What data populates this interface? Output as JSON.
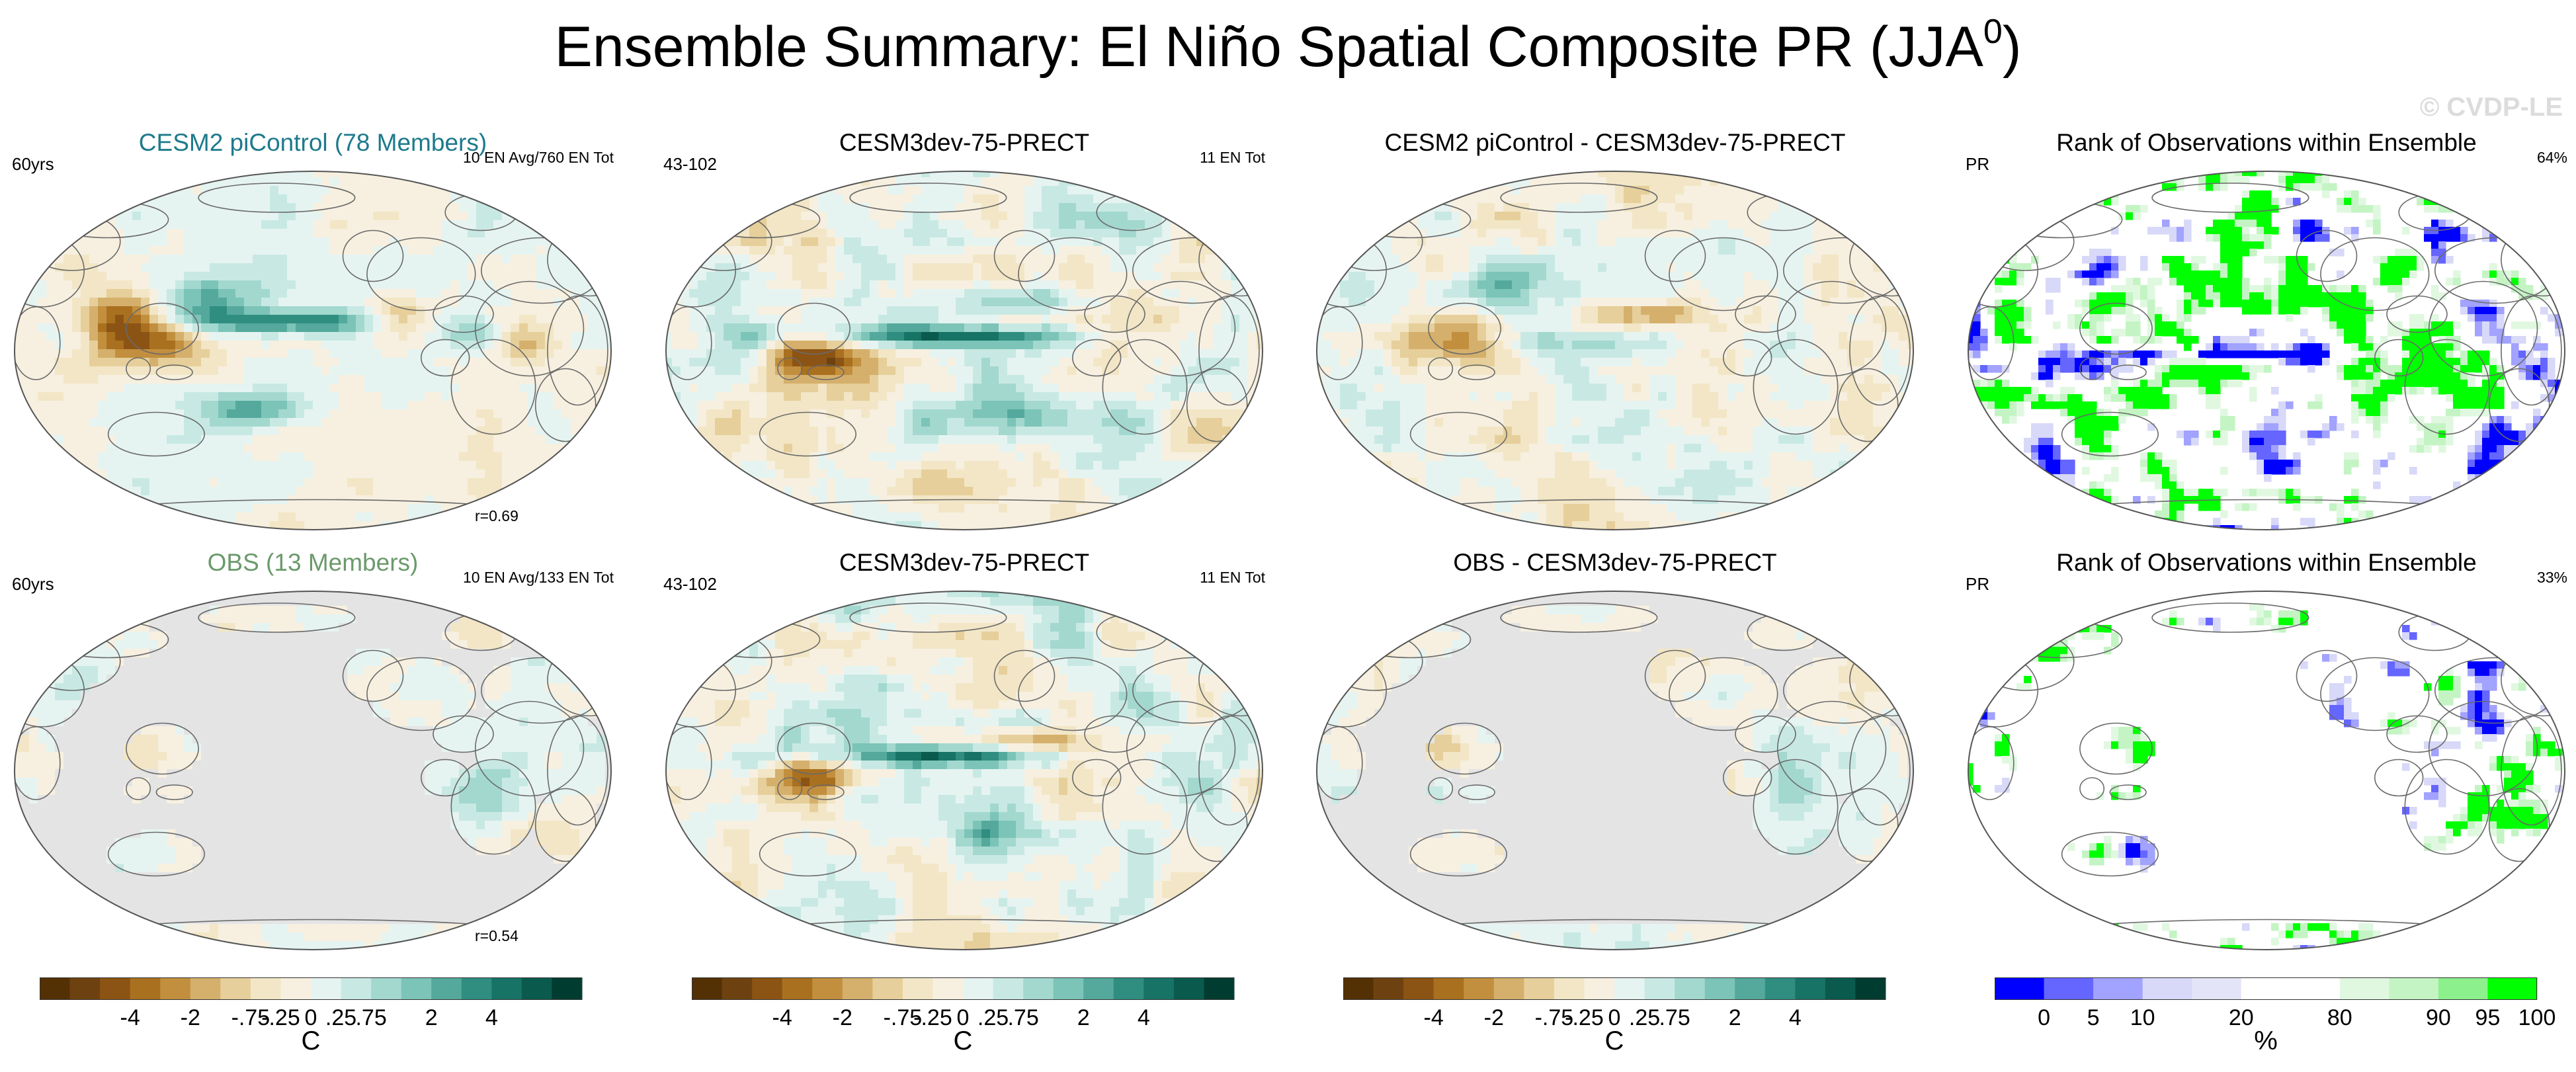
{
  "title": "Ensemble Summary: El Niño Spatial Composite PR (JJA",
  "title_sup": "0",
  "title_close": ")",
  "watermark": "© CVDP-LE",
  "panels": [
    {
      "title": "CESM2 piControl (78 Members)",
      "title_color": "#1d7a8c",
      "left_note": "60yrs",
      "right_note": "10 EN Avg/760 EN Tot",
      "r_value": "r=0.69",
      "kind": "diverging",
      "style": "ensemble"
    },
    {
      "title": "CESM3dev-75-PRECT",
      "title_color": "#000000",
      "left_note": "43-102",
      "right_note": "11 EN Tot",
      "r_value": "",
      "kind": "diverging",
      "style": "model"
    },
    {
      "title": "CESM2 piControl - CESM3dev-75-PRECT",
      "title_color": "#000000",
      "left_note": "",
      "right_note": "",
      "r_value": "",
      "kind": "diverging",
      "style": "diff"
    },
    {
      "title": "Rank of Observations within Ensemble",
      "title_color": "#000000",
      "left_note": "PR",
      "right_note": "64%",
      "r_value": "",
      "kind": "rank",
      "style": "rank-full"
    },
    {
      "title": "OBS (13 Members)",
      "title_color": "#6b9a6b",
      "left_note": "60yrs",
      "right_note": "10 EN Avg/133 EN Tot",
      "r_value": "r=0.54",
      "kind": "diverging",
      "style": "obs"
    },
    {
      "title": "CESM3dev-75-PRECT",
      "title_color": "#000000",
      "left_note": "43-102",
      "right_note": "11 EN Tot",
      "r_value": "",
      "kind": "diverging",
      "style": "model2"
    },
    {
      "title": "OBS - CESM3dev-75-PRECT",
      "title_color": "#000000",
      "left_note": "",
      "right_note": "",
      "r_value": "",
      "kind": "diverging",
      "style": "obsdiff"
    },
    {
      "title": "Rank of Observations within Ensemble",
      "title_color": "#000000",
      "left_note": "PR",
      "right_note": "33%",
      "r_value": "",
      "kind": "rank",
      "style": "rank-land"
    }
  ],
  "colorbars": [
    {
      "kind": "diverging",
      "labels": [
        "-4",
        "-2",
        "-.75",
        "-.25",
        "0",
        ".25",
        ".75",
        "2",
        "4"
      ],
      "unit": "C"
    },
    {
      "kind": "diverging",
      "labels": [
        "-4",
        "-2",
        "-.75",
        "-.25",
        "0",
        ".25",
        ".75",
        "2",
        "4"
      ],
      "unit": "C"
    },
    {
      "kind": "diverging",
      "labels": [
        "-4",
        "-2",
        "-.75",
        "-.25",
        "0",
        ".25",
        ".75",
        "2",
        "4"
      ],
      "unit": "C"
    },
    {
      "kind": "rank",
      "labels": [
        "0",
        "5",
        "10",
        "20",
        "80",
        "90",
        "95",
        "100"
      ],
      "unit": "%"
    }
  ],
  "palettes": {
    "diverging": [
      "#543005",
      "#6e4210",
      "#8c5414",
      "#a9701f",
      "#c28f3e",
      "#d5b06c",
      "#e6cf9a",
      "#f2e6c6",
      "#f7f0e0",
      "#e6f4f1",
      "#c8e9e3",
      "#a3d8cf",
      "#7cc4b8",
      "#54a99c",
      "#2f8e80",
      "#177366",
      "#0b5a4e",
      "#003c30"
    ],
    "rank": [
      "#0000ff",
      "#6565ff",
      "#a2a2ff",
      "#d8d8f8",
      "#e4e4f8",
      "#ffffff",
      "#ffffff",
      "#e0f8e0",
      "#c4f4c4",
      "#8cf08c",
      "#00ff00"
    ],
    "land": "#e4e4e4",
    "ocean_blank": "#ffffff"
  },
  "chart_data": {
    "type": "heatmap",
    "title": "Ensemble Summary: El Niño Spatial Composite PR (JJA⁰)",
    "projection": "Robinson (global)",
    "variable": "PR composite anomaly",
    "panels": [
      {
        "title": "CESM2 piControl (78 Members)",
        "period": "60yrs",
        "events": "10 EN Avg/760 EN Tot",
        "pattern_correlation": 0.69
      },
      {
        "title": "CESM3dev-75-PRECT",
        "period": "43-102",
        "events": "11 EN Tot"
      },
      {
        "title": "CESM2 piControl - CESM3dev-75-PRECT"
      },
      {
        "title": "Rank of Observations within Ensemble",
        "variable": "PR",
        "percent": 64
      },
      {
        "title": "OBS (13 Members)",
        "period": "60yrs",
        "events": "10 EN Avg/133 EN Tot",
        "pattern_correlation": 0.54
      },
      {
        "title": "CESM3dev-75-PRECT",
        "period": "43-102",
        "events": "11 EN Tot"
      },
      {
        "title": "OBS - CESM3dev-75-PRECT"
      },
      {
        "title": "Rank of Observations within Ensemble",
        "variable": "PR",
        "percent": 33
      }
    ],
    "colorbar_anomaly": {
      "levels": [
        -4,
        -2,
        -0.75,
        -0.25,
        0,
        0.25,
        0.75,
        2,
        4
      ],
      "unit": "C"
    },
    "colorbar_rank": {
      "levels": [
        0,
        5,
        10,
        20,
        80,
        90,
        95,
        100
      ],
      "unit": "%"
    }
  }
}
